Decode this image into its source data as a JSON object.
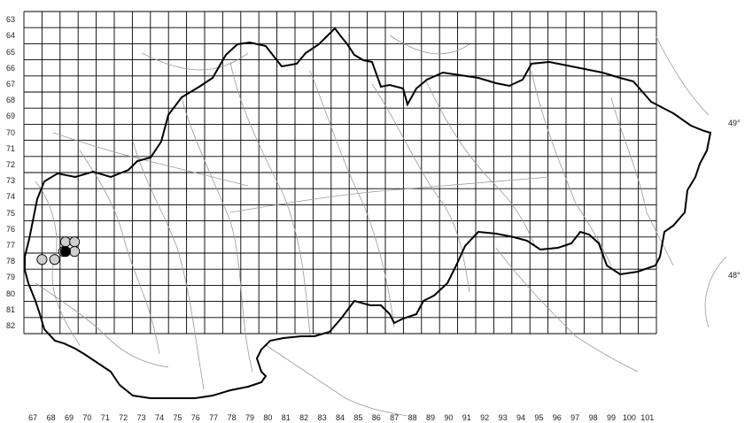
{
  "map": {
    "rows": [
      "63",
      "64",
      "65",
      "66",
      "67",
      "68",
      "69",
      "70",
      "71",
      "72",
      "73",
      "74",
      "75",
      "76",
      "77",
      "78",
      "79",
      "80",
      "81",
      "82"
    ],
    "cols": [
      "67",
      "68",
      "69",
      "70",
      "71",
      "72",
      "73",
      "74",
      "75",
      "76",
      "77",
      "78",
      "79",
      "80",
      "81",
      "82",
      "83",
      "84",
      "85",
      "86",
      "87",
      "88",
      "89",
      "90",
      "91",
      "92",
      "93",
      "94",
      "95",
      "96",
      "97",
      "98",
      "99",
      "100",
      "101"
    ],
    "lat_labels": [
      {
        "text": "49°",
        "row": "70"
      },
      {
        "text": "48°",
        "row": "79.5"
      }
    ],
    "records": [
      {
        "type": "open",
        "col": 67.5,
        "row": 77.9
      },
      {
        "type": "open",
        "col": 68.2,
        "row": 77.9
      },
      {
        "type": "open",
        "col": 68.7,
        "row": 77.4
      },
      {
        "type": "open",
        "col": 68.8,
        "row": 76.8
      },
      {
        "type": "open",
        "col": 69.3,
        "row": 76.8
      },
      {
        "type": "open",
        "col": 69.3,
        "row": 77.4
      },
      {
        "type": "filled",
        "col": 68.8,
        "row": 77.4
      }
    ],
    "colors": {
      "grid": "#000000",
      "border": "#000000",
      "rivers": "#9a9a9a",
      "open_record": "#cfcfcf",
      "filled_record": "#000000"
    }
  }
}
